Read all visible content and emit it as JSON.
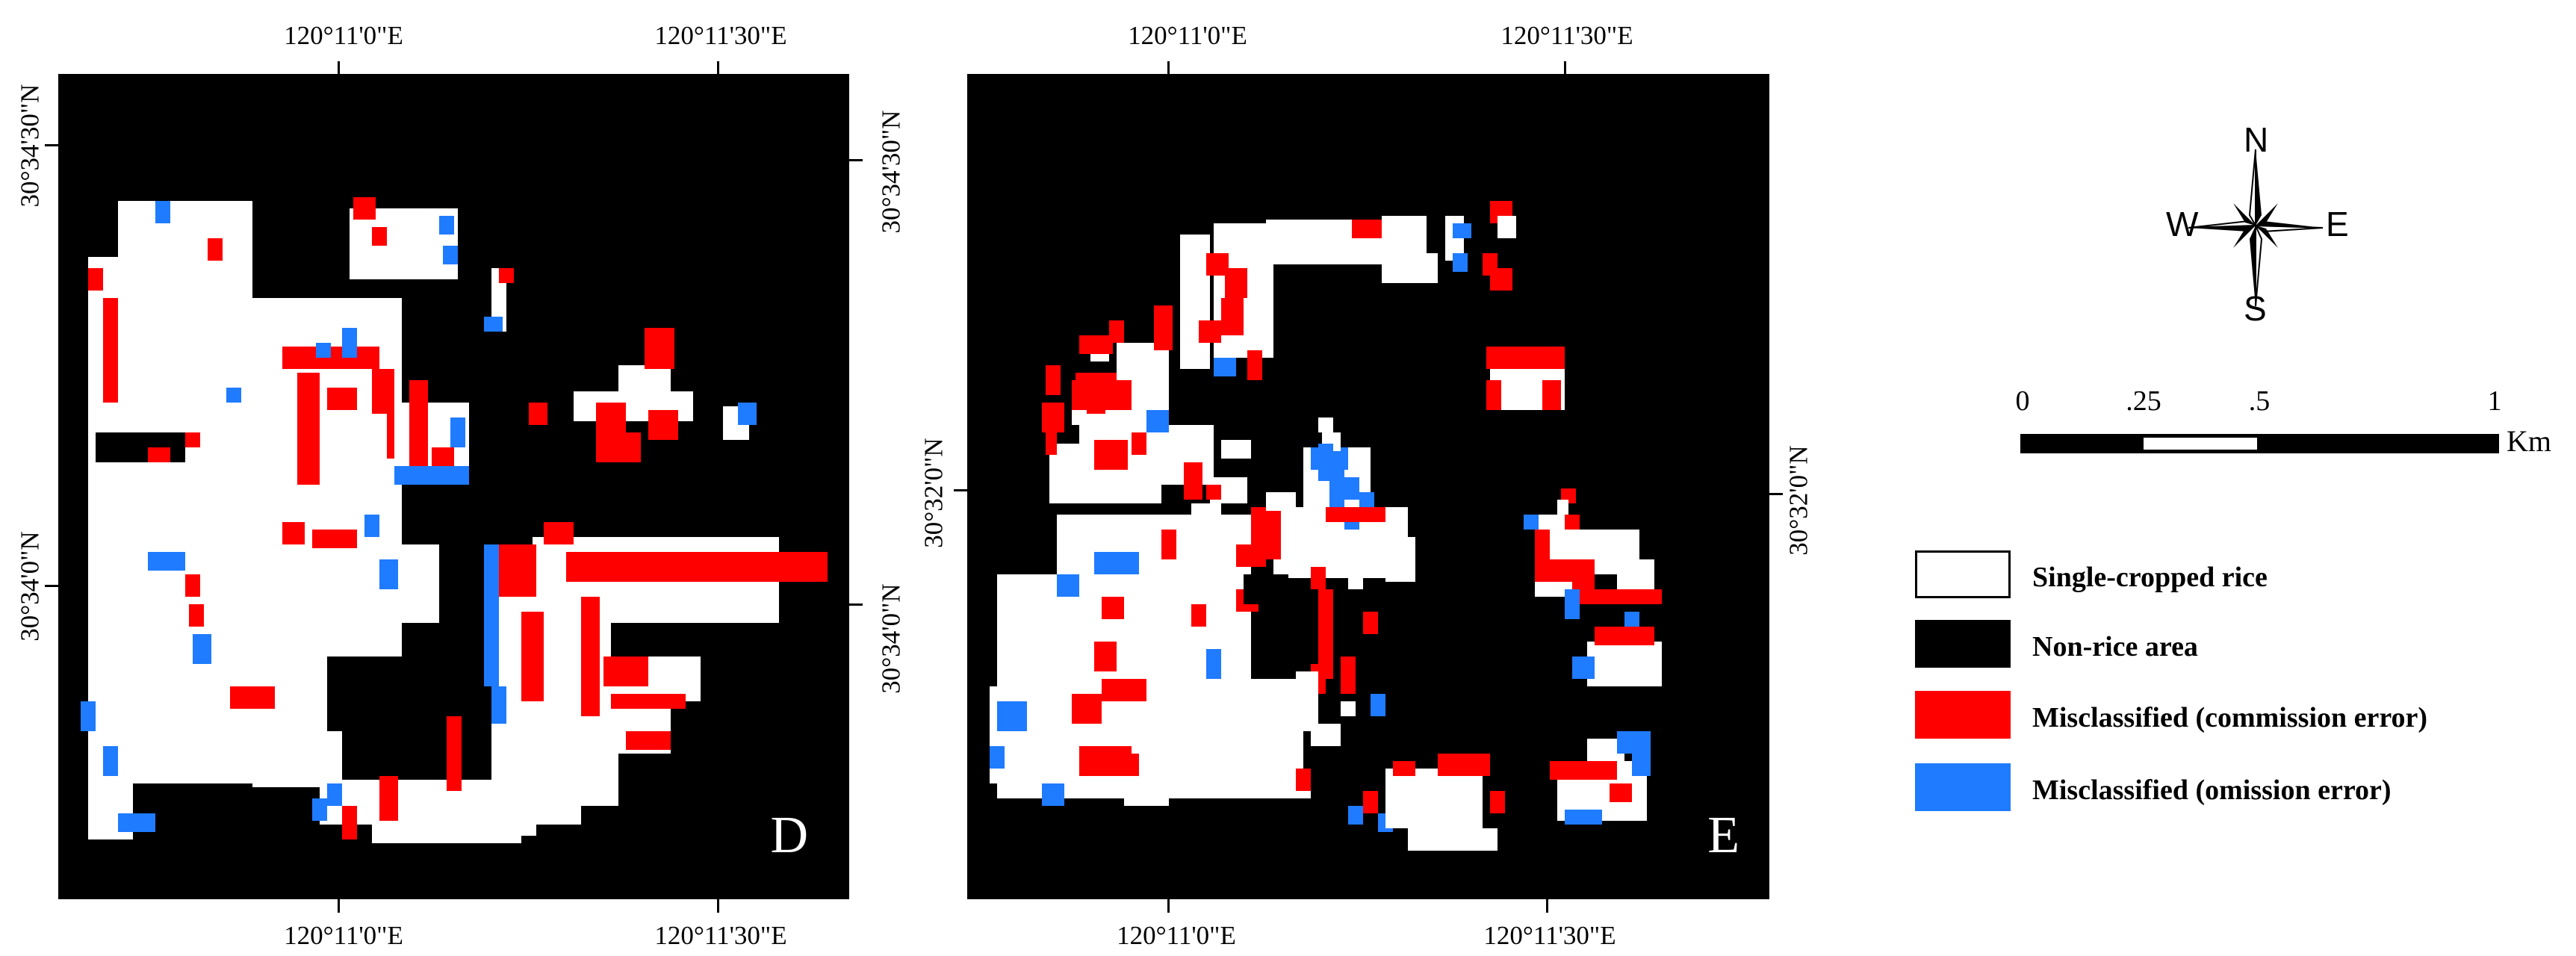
{
  "panels": [
    {
      "id": "D",
      "letter": "D",
      "top_labels": [
        "120°11'0\"E",
        "120°11'30\"E"
      ],
      "bottom_labels": [
        "120°11'0\"E",
        "120°11'30\"E"
      ],
      "left_labels": [
        "30°34'30\"N",
        "30°34'0\"N"
      ],
      "right_labels": [
        "30°34'30\"N",
        "30°34'0\"N"
      ]
    },
    {
      "id": "E",
      "letter": "E",
      "top_labels": [
        "120°11'0\"E",
        "120°11'30\"E"
      ],
      "bottom_labels": [
        "120°11'0\"E",
        "120°11'30\"E"
      ],
      "left_labels": [
        "30°32'0\"N"
      ],
      "right_labels": [
        "30°32'0\"N"
      ]
    }
  ],
  "compass": {
    "n": "N",
    "s": "S",
    "e": "E",
    "w": "W"
  },
  "scale_bar": {
    "labels": [
      "0",
      ".25",
      ".5",
      "1"
    ],
    "unit": "Km"
  },
  "legend": [
    {
      "label": "Single-cropped rice",
      "color": "#ffffff",
      "icon": "white-swatch"
    },
    {
      "label": "Non-rice area",
      "color": "#000000",
      "icon": "black-swatch"
    },
    {
      "label": "Misclassified (commission error)",
      "color": "#ff0000",
      "icon": "red-swatch"
    },
    {
      "label": "Misclassified (omission error)",
      "color": "#1f7bff",
      "icon": "blue-swatch"
    }
  ],
  "colors": {
    "rice": "#ffffff",
    "non_rice": "#000000",
    "commission": "#ff0000",
    "omission": "#1f7bff"
  }
}
